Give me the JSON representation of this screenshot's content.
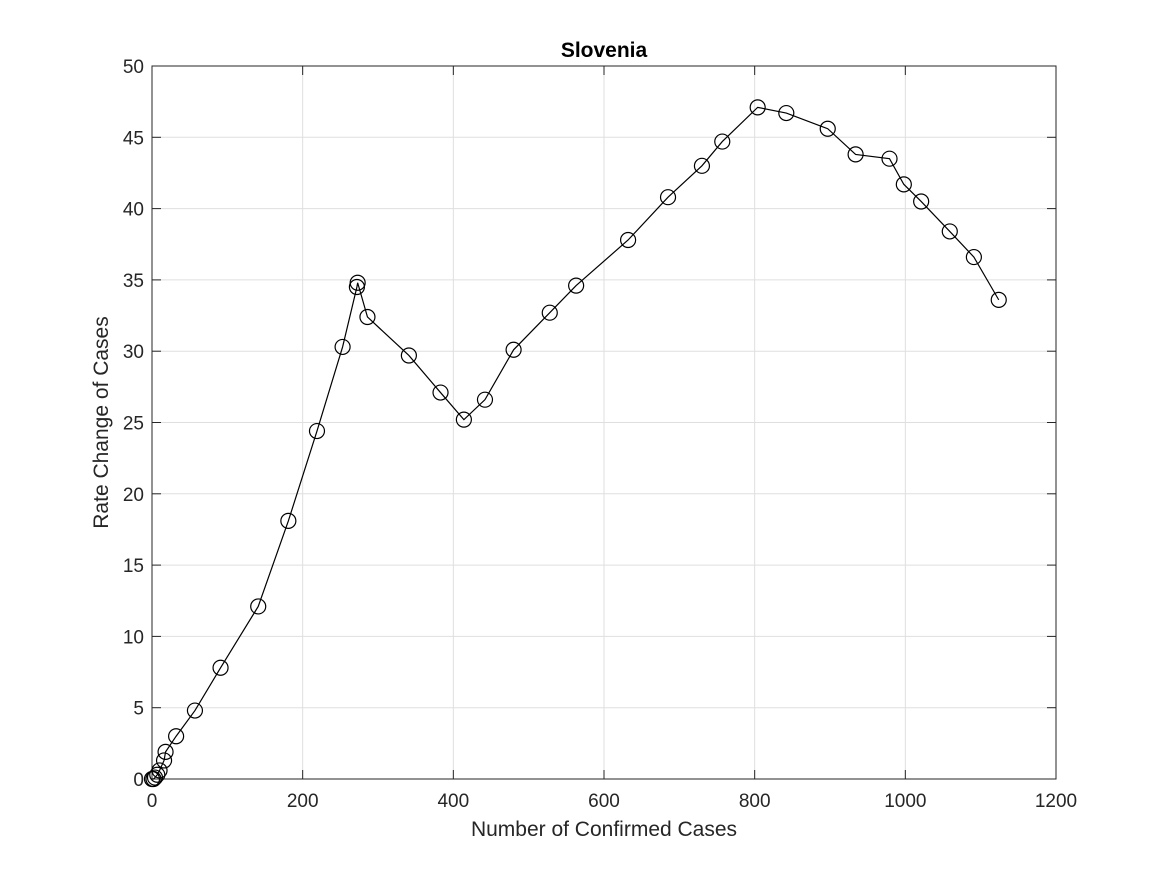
{
  "chart_data": {
    "type": "line",
    "title": "Slovenia",
    "xlabel": "Number of Confirmed Cases",
    "ylabel": "Rate Change of Cases",
    "xlim": [
      0,
      1200
    ],
    "ylim": [
      0,
      50
    ],
    "xticks": [
      0,
      200,
      400,
      600,
      800,
      1000,
      1200
    ],
    "yticks": [
      0,
      5,
      10,
      15,
      20,
      25,
      30,
      35,
      40,
      45,
      50
    ],
    "grid": true,
    "marker": "circle",
    "line_color": "#000000",
    "series": [
      {
        "x": [
          0,
          2,
          4,
          7,
          10,
          16,
          18,
          32,
          57,
          91,
          141,
          181,
          219,
          253,
          272,
          273,
          286,
          341,
          383,
          414,
          442,
          480,
          528,
          563,
          632,
          685,
          730,
          757,
          804,
          842,
          897,
          934,
          979,
          998,
          1021,
          1059,
          1091,
          1124
        ],
        "y": [
          0,
          0,
          0.1,
          0.3,
          0.6,
          1.3,
          1.9,
          3.0,
          4.8,
          7.8,
          12.1,
          18.1,
          24.4,
          30.3,
          34.5,
          34.8,
          32.4,
          29.7,
          27.1,
          25.2,
          26.6,
          30.1,
          32.7,
          34.6,
          37.8,
          40.8,
          43.0,
          44.7,
          47.1,
          46.7,
          45.6,
          43.8,
          43.5,
          41.7,
          40.5,
          38.4,
          36.6,
          33.6
        ]
      }
    ]
  }
}
